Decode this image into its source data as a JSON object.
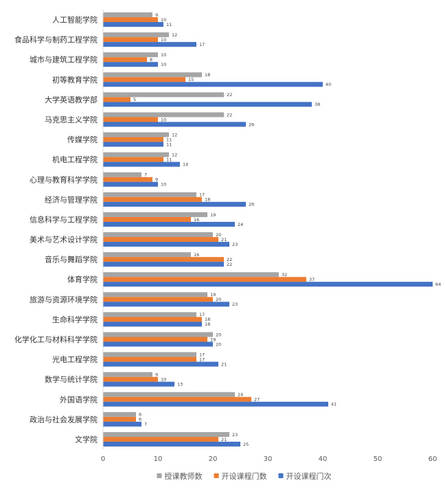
{
  "chart_data": {
    "type": "bar",
    "orientation": "horizontal",
    "title": "",
    "xlabel": "",
    "ylabel": "",
    "xlim": [
      0,
      60
    ],
    "x_ticks": [
      0,
      10,
      20,
      30,
      40,
      50,
      60
    ],
    "grid": false,
    "legend_position": "bottom",
    "categories": [
      "人工智能学院",
      "食品科学与制药工程学院",
      "城市与建筑工程学院",
      "初等教育学院",
      "大学英语教学部",
      "马克思主义学院",
      "传媒学院",
      "机电工程学院",
      "心理与教育科学学院",
      "经济与管理学院",
      "信息科学与工程学院",
      "美术与艺术设计学院",
      "音乐与舞蹈学院",
      "体育学院",
      "旅游与资源环境学院",
      "生命科学学院",
      "化学化工与材料科学学院",
      "光电工程学院",
      "数学与统计学院",
      "外国语学院",
      "政治与社会发展学院",
      "文学院"
    ],
    "series": [
      {
        "name": "授课教师数",
        "color": "#a5a5a5",
        "values": [
          9,
          12,
          10,
          18,
          22,
          22,
          12,
          12,
          7,
          17,
          19,
          20,
          16,
          32,
          19,
          17,
          20,
          17,
          9,
          24,
          6,
          23
        ]
      },
      {
        "name": "开设课程门数",
        "color": "#ed7d31",
        "values": [
          10,
          10,
          8,
          15,
          5,
          10,
          11,
          11,
          9,
          18,
          16,
          21,
          22,
          37,
          20,
          18,
          19,
          17,
          10,
          27,
          6,
          21
        ]
      },
      {
        "name": "开设课程门次",
        "color": "#4472c4",
        "values": [
          11,
          17,
          10,
          40,
          38,
          26,
          11,
          14,
          10,
          26,
          24,
          23,
          22,
          64,
          23,
          18,
          20,
          21,
          13,
          41,
          7,
          25
        ]
      }
    ]
  }
}
